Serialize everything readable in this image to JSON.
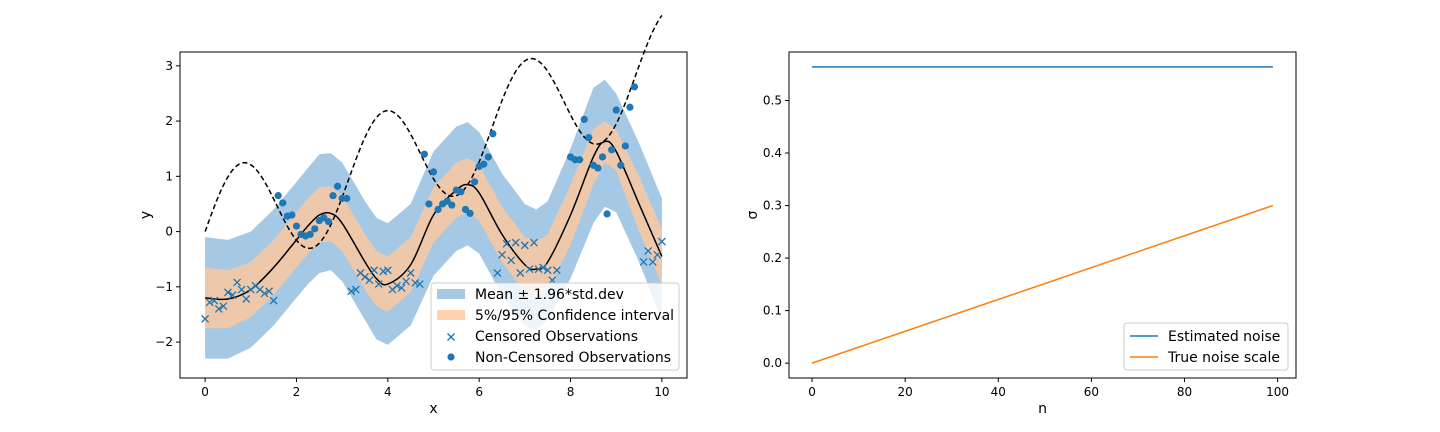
{
  "chart_data": [
    {
      "type": "scatter",
      "xlabel": "x",
      "ylabel": "y",
      "xlim": [
        -0.55,
        10.55
      ],
      "ylim": [
        -2.65,
        3.25
      ],
      "xticks": [
        0,
        2,
        4,
        6,
        8,
        10
      ],
      "yticks": [
        -2,
        -1,
        0,
        1,
        2,
        3
      ],
      "legend_position": "lower-right",
      "legend": [
        {
          "label": "Mean ± 1.96*std.dev",
          "kind": "patch",
          "color": "#a5c8e4"
        },
        {
          "label": "5%/95% Confidence interval",
          "kind": "patch",
          "color": "#fdd2b0"
        },
        {
          "label": "Censored Observations",
          "kind": "x-marker",
          "color": "#1f77b4"
        },
        {
          "label": "Non-Censored Observations",
          "kind": "dot-marker",
          "color": "#1f77b4"
        }
      ],
      "colors": {
        "outer_band": "#a5c8e4",
        "inner_band": "#f6c8a4",
        "mean": "#000000",
        "true_function": "#000000",
        "markers": "#1f77b4"
      },
      "mean_curve": {
        "x": [
          0,
          0.5,
          1,
          1.5,
          2,
          2.25,
          2.5,
          2.75,
          3,
          3.5,
          3.75,
          4,
          4.5,
          5,
          5.5,
          5.75,
          6,
          6.5,
          7,
          7.25,
          7.5,
          8,
          8.5,
          8.75,
          9,
          9.5,
          10
        ],
        "y": [
          -1.2,
          -1.22,
          -1.05,
          -0.65,
          -0.15,
          0.1,
          0.3,
          0.33,
          0.15,
          -0.55,
          -0.85,
          -0.95,
          -0.6,
          0.3,
          0.75,
          0.85,
          0.7,
          -0.05,
          -0.6,
          -0.68,
          -0.55,
          0.3,
          1.35,
          1.63,
          1.45,
          0.5,
          -0.45
        ]
      },
      "outer_band": {
        "upper": [
          -0.1,
          -0.15,
          0.0,
          0.4,
          0.9,
          1.15,
          1.4,
          1.42,
          1.25,
          0.55,
          0.25,
          0.15,
          0.5,
          1.45,
          1.9,
          1.98,
          1.8,
          1.05,
          0.5,
          0.4,
          0.55,
          1.5,
          2.6,
          2.75,
          2.5,
          1.6,
          0.6
        ],
        "lower": [
          -2.3,
          -2.3,
          -2.1,
          -1.7,
          -1.2,
          -0.95,
          -0.75,
          -0.7,
          -0.9,
          -1.6,
          -1.95,
          -2.05,
          -1.7,
          -0.8,
          -0.35,
          -0.25,
          -0.4,
          -1.15,
          -1.7,
          -1.8,
          -1.6,
          -0.85,
          0.15,
          0.45,
          0.35,
          -0.55,
          -1.6
        ]
      },
      "inner_band": {
        "upper": [
          -0.65,
          -0.7,
          -0.55,
          -0.15,
          0.35,
          0.6,
          0.8,
          0.82,
          0.65,
          -0.05,
          -0.35,
          -0.45,
          -0.1,
          0.8,
          1.25,
          1.33,
          1.2,
          0.45,
          -0.1,
          -0.18,
          -0.05,
          0.85,
          1.85,
          2.0,
          1.85,
          1.0,
          0.05
        ],
        "lower": [
          -1.75,
          -1.75,
          -1.55,
          -1.15,
          -0.65,
          -0.4,
          -0.2,
          -0.17,
          -0.35,
          -1.05,
          -1.35,
          -1.45,
          -1.1,
          -0.2,
          0.25,
          0.35,
          0.2,
          -0.55,
          -1.1,
          -1.18,
          -1.05,
          -0.25,
          0.85,
          1.25,
          1.1,
          0.0,
          -0.95
        ]
      },
      "true_function": {
        "formula": "y = sin(2x) + 0.3x",
        "x_range": [
          0,
          10
        ]
      },
      "censored": {
        "x": [
          0,
          0.1,
          0.2,
          0.3,
          0.4,
          0.5,
          0.6,
          0.7,
          0.8,
          0.9,
          1,
          1.1,
          1.2,
          1.3,
          1.4,
          1.5,
          3.2,
          3.3,
          3.4,
          3.5,
          3.6,
          3.7,
          3.8,
          3.9,
          4,
          4.1,
          4.2,
          4.3,
          4.4,
          4.5,
          4.6,
          4.7,
          6.4,
          6.5,
          6.6,
          6.7,
          6.8,
          6.9,
          7,
          7.1,
          7.2,
          7.3,
          7.4,
          7.5,
          7.6,
          7.7,
          9.6,
          9.7,
          9.8,
          9.9,
          10
        ],
        "y": [
          -1.58,
          -1.28,
          -1.25,
          -1.4,
          -1.35,
          -1.1,
          -1.15,
          -0.92,
          -1.05,
          -1.22,
          -1.05,
          -0.98,
          -1.05,
          -1.12,
          -1.08,
          -1.25,
          -1.08,
          -1.05,
          -0.75,
          -0.82,
          -0.88,
          -0.7,
          -0.95,
          -0.72,
          -0.7,
          -1.05,
          -0.98,
          -1.02,
          -0.9,
          -0.75,
          -0.93,
          -0.95,
          -0.75,
          -0.42,
          -0.22,
          -0.52,
          -0.2,
          -0.75,
          -0.25,
          -0.68,
          -0.2,
          -0.68,
          -0.65,
          -0.7,
          -0.88,
          -0.7,
          -0.55,
          -0.35,
          -0.55,
          -0.42,
          -0.18
        ]
      },
      "non_censored": {
        "x": [
          1.6,
          1.7,
          1.8,
          1.9,
          2,
          2.1,
          2.2,
          2.3,
          2.4,
          2.5,
          2.6,
          2.7,
          2.8,
          2.9,
          3,
          3.1,
          4.8,
          4.9,
          5,
          5.1,
          5.2,
          5.3,
          5.4,
          5.5,
          5.6,
          5.7,
          5.8,
          5.9,
          6,
          6.1,
          6.2,
          6.3,
          8,
          8.1,
          8.2,
          8.3,
          8.4,
          8.5,
          8.6,
          8.7,
          8.8,
          8.9,
          9,
          9.1,
          9.2,
          9.3,
          9.4
        ],
        "y": [
          0.65,
          0.52,
          0.28,
          0.3,
          0.1,
          -0.05,
          -0.08,
          -0.05,
          0.05,
          0.2,
          0.25,
          0.18,
          0.65,
          0.82,
          0.6,
          0.6,
          1.4,
          0.5,
          1.08,
          0.4,
          0.5,
          0.55,
          0.48,
          0.75,
          0.72,
          0.4,
          0.33,
          0.9,
          1.18,
          1.22,
          1.35,
          1.77,
          1.35,
          1.3,
          1.3,
          2.03,
          1.7,
          1.2,
          1.15,
          1.35,
          0.32,
          1.48,
          2.2,
          1.2,
          1.55,
          2.25,
          2.62
        ]
      }
    },
    {
      "type": "line",
      "xlabel": "n",
      "ylabel": "σ",
      "xlim": [
        -4.95,
        103.95
      ],
      "ylim": [
        -0.0283,
        0.5923
      ],
      "xticks": [
        0,
        20,
        40,
        60,
        80,
        100
      ],
      "yticks": [
        0.0,
        0.1,
        0.2,
        0.3,
        0.4,
        0.5
      ],
      "ytick_labels": [
        "0.0",
        "0.1",
        "0.2",
        "0.3",
        "0.4",
        "0.5"
      ],
      "legend_position": "lower-right",
      "series": [
        {
          "name": "Estimated noise",
          "color": "#1f77b4",
          "x": [
            0,
            99
          ],
          "y": [
            0.564,
            0.564
          ]
        },
        {
          "name": "True noise scale",
          "color": "#ff7f0e",
          "x": [
            0,
            99
          ],
          "y": [
            0.0,
            0.3
          ]
        }
      ]
    }
  ]
}
